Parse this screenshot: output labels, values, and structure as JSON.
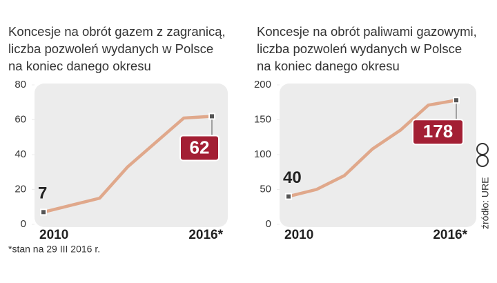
{
  "chart_data": [
    {
      "type": "line",
      "title": [
        "Koncesje na obrót gazem z zagranicą,",
        "liczba pozwoleń wydanych w Polsce",
        "na koniec danego okresu"
      ],
      "categories": [
        "2010",
        null,
        null,
        null,
        null,
        null,
        "2016*"
      ],
      "values": [
        7,
        11,
        15,
        33,
        47,
        61,
        62
      ],
      "color": "#e0a88b",
      "ylim": [
        0,
        80
      ],
      "yticks": [
        0,
        20,
        40,
        60,
        80
      ]
    },
    {
      "type": "line",
      "title": [
        "Koncesje na obrót paliwami gazowymi,",
        "liczba pozwoleń wydanych w Polsce",
        "na koniec danego okresu"
      ],
      "categories": [
        "2010",
        null,
        null,
        null,
        null,
        null,
        "2016*"
      ],
      "values": [
        40,
        50,
        70,
        108,
        135,
        171,
        178
      ],
      "color": "#e0a88b",
      "ylim": [
        0,
        200
      ],
      "yticks": [
        0,
        50,
        100,
        150,
        200
      ]
    }
  ],
  "footnote": "*stan na 29 III 2016 r.",
  "source": "źródło: URE"
}
